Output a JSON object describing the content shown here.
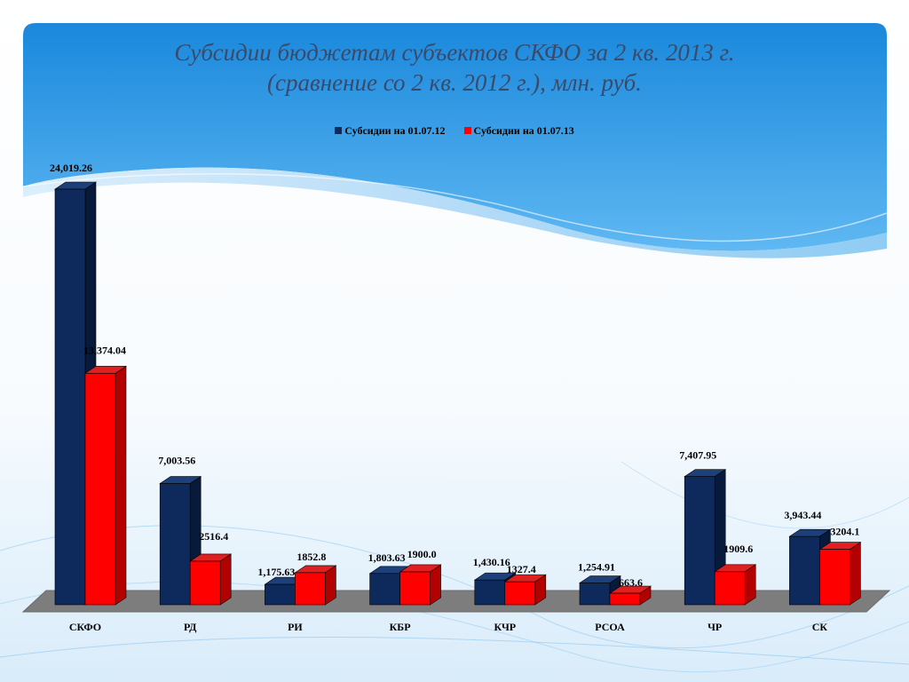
{
  "title": {
    "line1": "Субсидии бюджетам субъектов СКФО за 2 кв. 2013 г.",
    "line2": "(сравнение со 2 кв. 2012 г.), млн. руб."
  },
  "colors": {
    "series_2012_front": "#0e2a5c",
    "series_2012_side": "#081a3c",
    "series_2013_front": "#ff0000",
    "series_2013_side": "#b30000",
    "background_blue": "#1e90e0",
    "floor": "#808080"
  },
  "chart_data": {
    "type": "bar",
    "title": "Субсидии бюджетам субъектов СКФО за 2 кв. 2013 г. (сравнение со 2 кв. 2012 г.), млн. руб.",
    "categories": [
      "СКФО",
      "РД",
      "РИ",
      "КБР",
      "КЧР",
      "РСОА",
      "ЧР",
      "СК"
    ],
    "series": [
      {
        "name": "Субсидии на 01.07.12",
        "values": [
          24019.26,
          7003.56,
          1175.63,
          1803.63,
          1430.16,
          1254.91,
          7407.95,
          3943.44
        ],
        "labels": [
          "24,019.26",
          "7,003.56",
          "1,175.63",
          "1,803.63",
          "1,430.16",
          "1,254.91",
          "7,407.95",
          "3,943.44"
        ]
      },
      {
        "name": "Субсидии на 01.07.13",
        "values": [
          13374.04,
          2516.4,
          1852.8,
          1900.0,
          1327.4,
          663.6,
          1909.6,
          3204.1
        ],
        "labels": [
          "13,374.04",
          "2516.4",
          "1852.8",
          "1900.0",
          "1327.4",
          "663.6",
          "1909.6",
          "3204.1"
        ]
      }
    ],
    "xlabel": "",
    "ylabel": "",
    "ylim": [
      0,
      24019.26
    ],
    "grid": false,
    "legend": "top-center",
    "style": "3d-clustered-column"
  }
}
